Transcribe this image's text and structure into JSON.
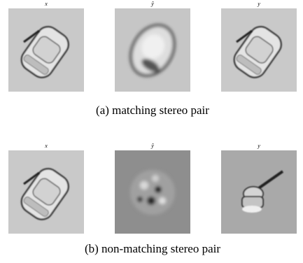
{
  "panels": [
    {
      "caption": "(a)  matching stereo pair",
      "images": [
        {
          "label": "x"
        },
        {
          "label": "ŷ"
        },
        {
          "label": "y"
        }
      ]
    },
    {
      "caption": "(b)  non-matching stereo pair",
      "images": [
        {
          "label": "x"
        },
        {
          "label": "ŷ"
        },
        {
          "label": "y"
        }
      ]
    }
  ]
}
